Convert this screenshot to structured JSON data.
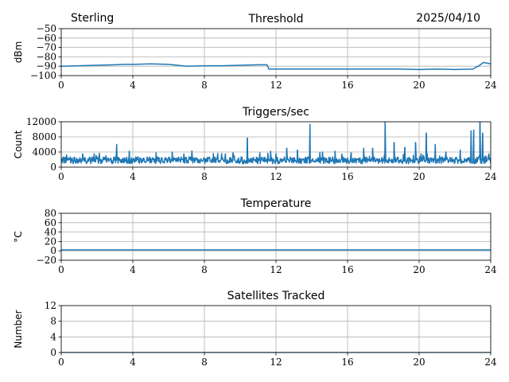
{
  "header": {
    "station": "Sterling",
    "date": "2025/04/10"
  },
  "style": {
    "line_color": "#1f77b4",
    "grid_color": "#b0b0b0",
    "axis_color": "#000000"
  },
  "chart_data": [
    {
      "type": "line",
      "title": "Threshold",
      "xlabel": "",
      "ylabel": "dBm",
      "xlim": [
        0,
        24
      ],
      "ylim": [
        -100,
        -50
      ],
      "x_ticks": [
        0,
        4,
        8,
        12,
        16,
        20,
        24
      ],
      "y_ticks": [
        -100,
        -90,
        -80,
        -70,
        -60,
        -50
      ],
      "y_tick_labels": [
        "−100",
        "−90",
        "−80",
        "−70",
        "−60",
        "−50"
      ],
      "grid": true,
      "series": [
        {
          "x": [
            0,
            1,
            2,
            3,
            3.5,
            4,
            5,
            6,
            6.5,
            7,
            8,
            9,
            10,
            11,
            11.5,
            11.6,
            12,
            13,
            14,
            15,
            16,
            17,
            18,
            19,
            20,
            21,
            22,
            23,
            23.3,
            23.6,
            24
          ],
          "y": [
            -90,
            -89.5,
            -89,
            -88.5,
            -88,
            -88,
            -87.5,
            -88,
            -89,
            -90,
            -89.5,
            -89.5,
            -89,
            -88.5,
            -88.5,
            -93,
            -93,
            -93,
            -93,
            -93,
            -93,
            -93,
            -93,
            -93,
            -93.5,
            -93,
            -93.5,
            -93,
            -90,
            -86,
            -87.5
          ]
        }
      ]
    },
    {
      "type": "line",
      "title": "Triggers/sec",
      "xlabel": "",
      "ylabel": "Count",
      "xlim": [
        0,
        24
      ],
      "ylim": [
        0,
        12000
      ],
      "x_ticks": [
        0,
        4,
        8,
        12,
        16,
        20,
        24
      ],
      "y_ticks": [
        0,
        4000,
        8000,
        12000
      ],
      "y_tick_labels": [
        "0",
        "4000",
        "8000",
        "12000"
      ],
      "grid": true,
      "baseline": 1800,
      "noise": 900,
      "spikes": [
        {
          "x": 0.3,
          "y": 3200
        },
        {
          "x": 1.2,
          "y": 3500
        },
        {
          "x": 2.5,
          "y": 3000
        },
        {
          "x": 3.1,
          "y": 6000
        },
        {
          "x": 3.8,
          "y": 4200
        },
        {
          "x": 5.3,
          "y": 3800
        },
        {
          "x": 6.2,
          "y": 4000
        },
        {
          "x": 7.3,
          "y": 4300
        },
        {
          "x": 8.5,
          "y": 3600
        },
        {
          "x": 9.6,
          "y": 3800
        },
        {
          "x": 10.4,
          "y": 7700
        },
        {
          "x": 11.1,
          "y": 3800
        },
        {
          "x": 11.7,
          "y": 4200
        },
        {
          "x": 12.6,
          "y": 5000
        },
        {
          "x": 13.2,
          "y": 4500
        },
        {
          "x": 13.9,
          "y": 11300
        },
        {
          "x": 14.6,
          "y": 4000
        },
        {
          "x": 15.3,
          "y": 4200
        },
        {
          "x": 16.2,
          "y": 3800
        },
        {
          "x": 16.9,
          "y": 5000
        },
        {
          "x": 17.4,
          "y": 5000
        },
        {
          "x": 18.1,
          "y": 12300
        },
        {
          "x": 18.6,
          "y": 6500
        },
        {
          "x": 19.2,
          "y": 5200
        },
        {
          "x": 19.8,
          "y": 6500
        },
        {
          "x": 20.4,
          "y": 9000
        },
        {
          "x": 20.9,
          "y": 6000
        },
        {
          "x": 21.5,
          "y": 4000
        },
        {
          "x": 22.3,
          "y": 4500
        },
        {
          "x": 22.9,
          "y": 9600
        },
        {
          "x": 23.05,
          "y": 9800
        },
        {
          "x": 23.4,
          "y": 12300
        },
        {
          "x": 23.55,
          "y": 9000
        },
        {
          "x": 23.9,
          "y": 3500
        }
      ]
    },
    {
      "type": "line",
      "title": "Temperature",
      "xlabel": "",
      "ylabel": "°C",
      "xlim": [
        0,
        24
      ],
      "ylim": [
        -20,
        80
      ],
      "x_ticks": [
        0,
        4,
        8,
        12,
        16,
        20,
        24
      ],
      "y_ticks": [
        -20,
        0,
        20,
        40,
        60,
        80
      ],
      "y_tick_labels": [
        "−20",
        "0",
        "20",
        "40",
        "60",
        "80"
      ],
      "grid": true,
      "series": [
        {
          "x": [
            0,
            24
          ],
          "y": [
            2,
            2
          ]
        }
      ]
    },
    {
      "type": "line",
      "title": "Satellites Tracked",
      "xlabel": "",
      "ylabel": "Number",
      "xlim": [
        0,
        24
      ],
      "ylim": [
        0,
        12
      ],
      "x_ticks": [
        0,
        4,
        8,
        12,
        16,
        20,
        24
      ],
      "y_ticks": [
        0,
        4,
        8,
        12
      ],
      "y_tick_labels": [
        "0",
        "4",
        "8",
        "12"
      ],
      "grid": true,
      "series": [
        {
          "x": [
            0,
            24
          ],
          "y": [
            0,
            0
          ]
        }
      ]
    }
  ]
}
